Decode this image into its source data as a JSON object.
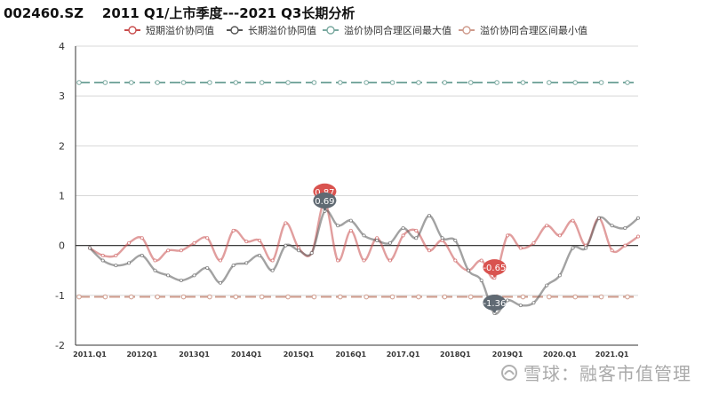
{
  "chart_data": {
    "type": "line",
    "title": "002460.SZ    2011 Q1/上市季度---2021 Q3长期分析",
    "ylim": [
      -2,
      4
    ],
    "yticks": [
      "4",
      "3",
      "2",
      "1",
      "0",
      "-1",
      "-2"
    ],
    "xticks": [
      "2011.Q1",
      "2012Q1",
      "2013Q1",
      "2014Q1",
      "2015Q1",
      "2016Q1",
      "2017.Q1",
      "2018Q1",
      "2019Q1",
      "2020.Q1",
      "2021.Q1"
    ],
    "x_count": 43,
    "grid": true,
    "legend_placement": "top-center",
    "series": [
      {
        "name": "短期溢价协同值",
        "color": "#c94e4e",
        "values": [
          -0.05,
          -0.2,
          -0.2,
          0.05,
          0.15,
          -0.3,
          -0.1,
          -0.1,
          0.05,
          0.15,
          -0.3,
          0.3,
          0.08,
          0.1,
          -0.3,
          0.45,
          -0.05,
          -0.15,
          0.87,
          -0.3,
          0.3,
          -0.3,
          0.15,
          -0.3,
          0.2,
          0.3,
          -0.1,
          0.1,
          -0.3,
          -0.5,
          -0.3,
          -0.65,
          0.2,
          -0.05,
          0.05,
          0.4,
          0.2,
          0.5,
          0.0,
          0.55,
          -0.1,
          0.0,
          0.18
        ]
      },
      {
        "name": "长期溢价协同值",
        "color": "#555555",
        "values": [
          -0.05,
          -0.3,
          -0.4,
          -0.35,
          -0.2,
          -0.5,
          -0.6,
          -0.7,
          -0.6,
          -0.45,
          -0.75,
          -0.4,
          -0.35,
          -0.2,
          -0.5,
          0.0,
          -0.1,
          -0.15,
          0.69,
          0.4,
          0.5,
          0.2,
          0.1,
          0.05,
          0.35,
          0.15,
          0.6,
          0.15,
          0.1,
          -0.5,
          -0.7,
          -1.36,
          -1.1,
          -1.2,
          -1.15,
          -0.8,
          -0.6,
          -0.05,
          -0.05,
          0.55,
          0.4,
          0.35,
          0.55
        ]
      },
      {
        "name": "溢价协同合理区间最大值",
        "color": "#7aa9a0",
        "constant": 3.27
      },
      {
        "name": "溢价协同合理区间最小值",
        "color": "#cf9b8c",
        "constant": -1.03
      }
    ],
    "annotations": [
      {
        "label": "0.87",
        "series": 0,
        "index": 18,
        "color": "#d9534f"
      },
      {
        "label": "0.69",
        "series": 1,
        "index": 18,
        "color": "#606a73"
      },
      {
        "label": "-0.65",
        "series": 0,
        "index": 31,
        "color": "#d9534f"
      },
      {
        "label": "-1.36",
        "series": 1,
        "index": 31,
        "color": "#606a73"
      }
    ]
  },
  "watermark": {
    "text": "雪球：融客市值管理"
  }
}
